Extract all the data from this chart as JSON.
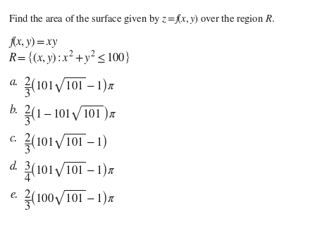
{
  "background_color": "#ffffff",
  "text_color": "#1a1a1a",
  "figsize": [
    4.74,
    3.58
  ],
  "dpi": 100,
  "title": "Find the area of the surface given by $z =f\\!\\left(x,y\\right)$over the region $R$.",
  "line1": "$f\\!\\left(x,y\\right) = xy$",
  "line2": "$R = \\left\\{\\left(x,y\\right): x^2 +y^2 \\leq 100\\right\\}$",
  "option_labels": [
    "a.",
    "b.",
    "c.",
    "d.",
    "e."
  ],
  "font_size_title": 10.5,
  "font_size_body": 12,
  "font_size_options": 12
}
